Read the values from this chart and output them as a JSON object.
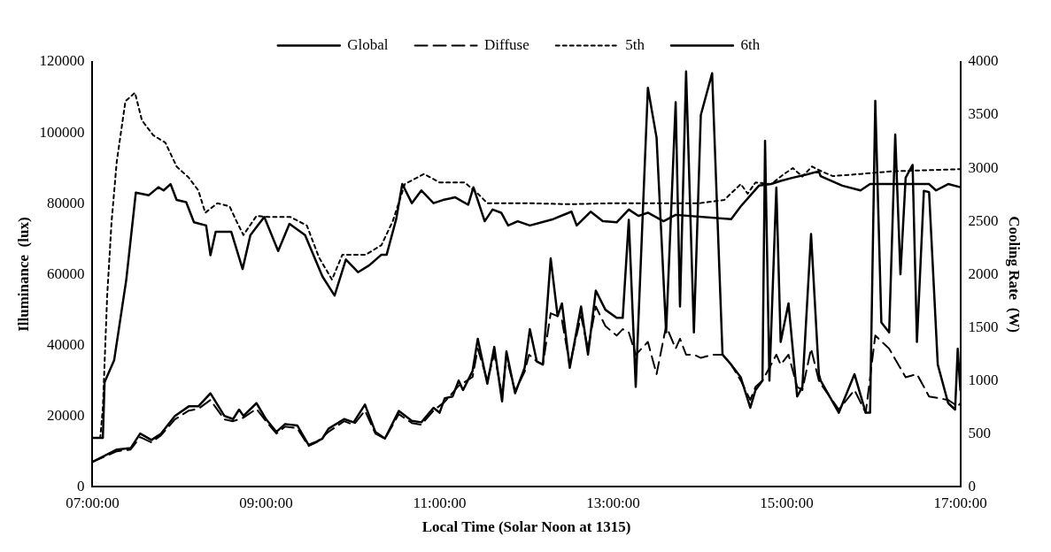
{
  "chart_data": {
    "type": "line",
    "xlabel": "Local Time (Solar Noon at 1315)",
    "ylabel": "Illuminance  (lux)",
    "y2label": "Cooling Rate  (W)",
    "xlim": [
      7,
      17
    ],
    "xticks": [
      {
        "value": 7,
        "label": "07:00:00"
      },
      {
        "value": 9,
        "label": "09:00:00"
      },
      {
        "value": 11,
        "label": "11:00:00"
      },
      {
        "value": 13,
        "label": "13:00:00"
      },
      {
        "value": 15,
        "label": "15:00:00"
      },
      {
        "value": 17,
        "label": "17:00:00"
      }
    ],
    "ylim": [
      0,
      120000
    ],
    "yticks": [
      0,
      20000,
      40000,
      60000,
      80000,
      100000,
      120000
    ],
    "y2lim": [
      0,
      4000
    ],
    "y2ticks": [
      0,
      500,
      1000,
      1500,
      2000,
      2500,
      3000,
      3500,
      4000
    ],
    "legend": "top",
    "grid": false,
    "marker": "none",
    "series": [
      {
        "name": "Global",
        "color": "#000000",
        "line_style": "solid",
        "x": [
          7.0,
          7.28,
          7.44,
          7.55,
          7.68,
          7.79,
          7.95,
          8.11,
          8.22,
          8.36,
          8.52,
          8.62,
          8.69,
          8.74,
          8.89,
          9.0,
          9.12,
          9.22,
          9.36,
          9.49,
          9.58,
          9.65,
          9.72,
          9.9,
          10.01,
          10.14,
          10.26,
          10.37,
          10.53,
          10.68,
          10.79,
          10.93,
          11.0,
          11.06,
          11.15,
          11.22,
          11.27,
          11.38,
          11.44,
          11.55,
          11.63,
          11.72,
          11.77,
          11.87,
          11.98,
          12.04,
          12.12,
          12.19,
          12.28,
          12.36,
          12.41,
          12.5,
          12.63,
          12.71,
          12.8,
          12.91,
          13.04,
          13.11,
          13.18,
          13.26,
          13.4,
          13.5,
          13.61,
          13.72,
          13.77,
          13.84,
          13.93,
          14.01,
          14.14,
          14.26,
          14.36,
          14.47,
          14.58,
          14.64,
          14.72,
          14.75,
          14.8,
          14.88,
          14.93,
          15.02,
          15.12,
          15.18,
          15.28,
          15.37,
          15.39,
          15.6,
          15.78,
          15.91,
          15.96,
          16.02,
          16.09,
          16.18,
          16.25,
          16.31,
          16.37,
          16.45,
          16.5,
          16.58,
          16.64,
          16.74,
          16.86,
          16.94,
          16.97,
          17.0
        ],
        "values": [
          7000,
          10500,
          10900,
          15000,
          13200,
          15000,
          20000,
          22700,
          22700,
          26400,
          20000,
          19100,
          21800,
          20000,
          23600,
          19100,
          15500,
          17700,
          17300,
          11800,
          12700,
          13600,
          16400,
          19100,
          18200,
          23200,
          15500,
          13600,
          21400,
          18600,
          18200,
          22300,
          20900,
          25000,
          25500,
          30000,
          27300,
          32700,
          41800,
          29100,
          39500,
          24100,
          38200,
          26400,
          33600,
          44500,
          35400,
          34500,
          64500,
          48200,
          51800,
          33600,
          50900,
          37300,
          55400,
          50000,
          47700,
          47700,
          75400,
          28200,
          112700,
          98600,
          43600,
          108600,
          50900,
          117300,
          43600,
          105000,
          116800,
          37300,
          34500,
          30900,
          22300,
          27300,
          30000,
          97700,
          30000,
          84500,
          40900,
          51800,
          25500,
          28200,
          71400,
          31800,
          30000,
          20900,
          31800,
          20900,
          20900,
          109000,
          46400,
          43600,
          99500,
          60000,
          87300,
          90900,
          40900,
          83600,
          83200,
          34500,
          23600,
          21800,
          39000,
          27300
        ]
      },
      {
        "name": "Diffuse",
        "color": "#000000",
        "line_style": "dashed",
        "x": [
          7.0,
          7.28,
          7.44,
          7.55,
          7.68,
          7.79,
          7.95,
          8.11,
          8.22,
          8.36,
          8.52,
          8.62,
          8.74,
          8.89,
          9.0,
          9.12,
          9.22,
          9.36,
          9.49,
          9.58,
          9.72,
          9.9,
          10.01,
          10.14,
          10.26,
          10.37,
          10.53,
          10.68,
          10.79,
          10.93,
          11.06,
          11.22,
          11.38,
          11.44,
          11.55,
          11.63,
          11.72,
          11.77,
          11.87,
          11.98,
          12.03,
          12.12,
          12.19,
          12.28,
          12.36,
          12.41,
          12.5,
          12.63,
          12.71,
          12.8,
          12.91,
          13.04,
          13.11,
          13.18,
          13.26,
          13.4,
          13.5,
          13.61,
          13.72,
          13.77,
          13.84,
          13.93,
          14.01,
          14.14,
          14.26,
          14.36,
          14.47,
          14.58,
          14.64,
          14.72,
          14.8,
          14.88,
          14.93,
          15.02,
          15.12,
          15.18,
          15.28,
          15.37,
          15.39,
          15.6,
          15.78,
          15.91,
          16.02,
          16.18,
          16.37,
          16.5,
          16.64,
          16.86,
          16.97,
          17.0
        ],
        "values": [
          7000,
          10000,
          10500,
          14000,
          12500,
          14500,
          19000,
          21500,
          22000,
          24500,
          19000,
          18500,
          19500,
          22000,
          18500,
          15000,
          17000,
          16500,
          11500,
          12500,
          15500,
          18500,
          17500,
          21500,
          15000,
          13500,
          20500,
          18000,
          17500,
          21500,
          24000,
          28500,
          31000,
          39000,
          30000,
          37500,
          26000,
          36500,
          27000,
          32500,
          37300,
          35400,
          34500,
          49000,
          48200,
          47000,
          34500,
          48200,
          39000,
          50900,
          45400,
          42700,
          44500,
          43600,
          37300,
          40900,
          31800,
          45400,
          39000,
          41800,
          37300,
          37300,
          36400,
          37300,
          37300,
          34500,
          30000,
          24500,
          28200,
          30000,
          33600,
          37300,
          34500,
          37300,
          28200,
          27300,
          39000,
          30000,
          29100,
          21800,
          27300,
          20900,
          42700,
          39000,
          30900,
          31800,
          25500,
          24500,
          22700,
          23600
        ]
      },
      {
        "name": "5th",
        "color": "#000000",
        "line_style": "dotted",
        "axis": "y2",
        "x": [
          7.0,
          7.09,
          7.12,
          7.17,
          7.22,
          7.28,
          7.38,
          7.49,
          7.57,
          7.7,
          7.84,
          7.97,
          8.11,
          8.22,
          8.3,
          8.44,
          8.58,
          8.66,
          8.74,
          8.89,
          9.03,
          9.28,
          9.47,
          9.61,
          9.76,
          9.88,
          10.15,
          10.33,
          10.46,
          10.6,
          10.82,
          11.0,
          11.29,
          11.44,
          11.55,
          12.0,
          12.5,
          13.0,
          13.5,
          14.0,
          14.28,
          14.47,
          14.55,
          14.64,
          14.82,
          14.97,
          15.07,
          15.18,
          15.29,
          15.4,
          15.53,
          15.85,
          16.21,
          17.0
        ],
        "values": [
          460,
          460,
          740,
          1800,
          2490,
          3060,
          3630,
          3710,
          3450,
          3310,
          3240,
          3015,
          2910,
          2790,
          2580,
          2670,
          2640,
          2500,
          2370,
          2550,
          2540,
          2540,
          2460,
          2160,
          1950,
          2185,
          2185,
          2275,
          2500,
          2850,
          2945,
          2865,
          2865,
          2760,
          2670,
          2670,
          2660,
          2670,
          2670,
          2670,
          2700,
          2850,
          2760,
          2865,
          2850,
          2945,
          3000,
          2920,
          3015,
          2970,
          2925,
          2945,
          2970,
          2990
        ]
      },
      {
        "name": "6th",
        "color": "#000000",
        "line_style": "solid",
        "axis": "y2",
        "x": [
          7.0,
          7.12,
          7.14,
          7.25,
          7.39,
          7.5,
          7.65,
          7.76,
          7.82,
          7.9,
          7.97,
          8.08,
          8.17,
          8.31,
          8.36,
          8.42,
          8.6,
          8.73,
          8.82,
          8.98,
          9.14,
          9.27,
          9.45,
          9.65,
          9.79,
          9.92,
          10.06,
          10.19,
          10.33,
          10.39,
          10.5,
          10.57,
          10.68,
          10.79,
          10.93,
          11.04,
          11.18,
          11.33,
          11.39,
          11.52,
          11.61,
          11.71,
          11.79,
          11.9,
          12.04,
          12.31,
          12.52,
          12.58,
          12.74,
          12.88,
          13.04,
          13.18,
          13.29,
          13.4,
          13.58,
          13.72,
          14.36,
          14.47,
          14.68,
          14.82,
          14.93,
          15.07,
          15.23,
          15.37,
          15.39,
          15.64,
          15.85,
          15.96,
          16.64,
          16.72,
          16.86,
          17.0
        ],
        "values": [
          460,
          460,
          985,
          1190,
          1950,
          2770,
          2745,
          2820,
          2790,
          2850,
          2700,
          2680,
          2490,
          2460,
          2180,
          2400,
          2400,
          2050,
          2370,
          2540,
          2220,
          2475,
          2370,
          1980,
          1800,
          2140,
          2020,
          2085,
          2185,
          2185,
          2520,
          2850,
          2670,
          2790,
          2670,
          2700,
          2725,
          2655,
          2820,
          2500,
          2610,
          2580,
          2460,
          2500,
          2460,
          2520,
          2590,
          2460,
          2590,
          2500,
          2490,
          2610,
          2550,
          2580,
          2500,
          2560,
          2520,
          2640,
          2835,
          2850,
          2880,
          2910,
          2940,
          2970,
          2925,
          2835,
          2790,
          2850,
          2850,
          2790,
          2850,
          2820
        ]
      }
    ]
  }
}
